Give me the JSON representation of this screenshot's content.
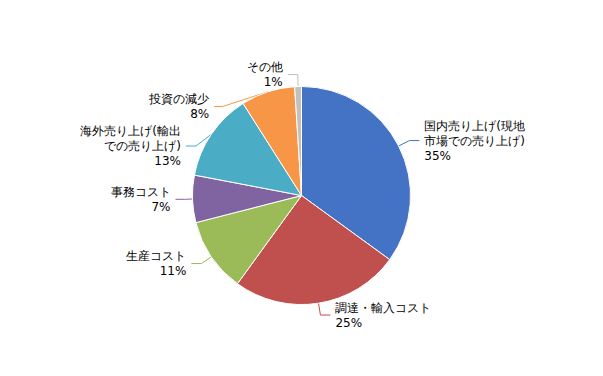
{
  "chart_data": {
    "type": "pie",
    "categories": [
      "国内売り上げ(現地\n市場での売り上げ)",
      "調達・輸入コスト",
      "生産コスト",
      "事務コスト",
      "海外売り上げ(輸出\nでの売り上げ)",
      "投資の減少",
      "その他"
    ],
    "values": [
      35,
      25,
      11,
      7,
      13,
      8,
      1
    ],
    "value_labels": [
      "35%",
      "25%",
      "11%",
      "7%",
      "13%",
      "8%",
      "1%"
    ],
    "colors": [
      "#4472c4",
      "#c0504d",
      "#9bbb59",
      "#8064a2",
      "#4bacc6",
      "#f79646",
      "#c6c0bc"
    ],
    "data_labels": true
  }
}
